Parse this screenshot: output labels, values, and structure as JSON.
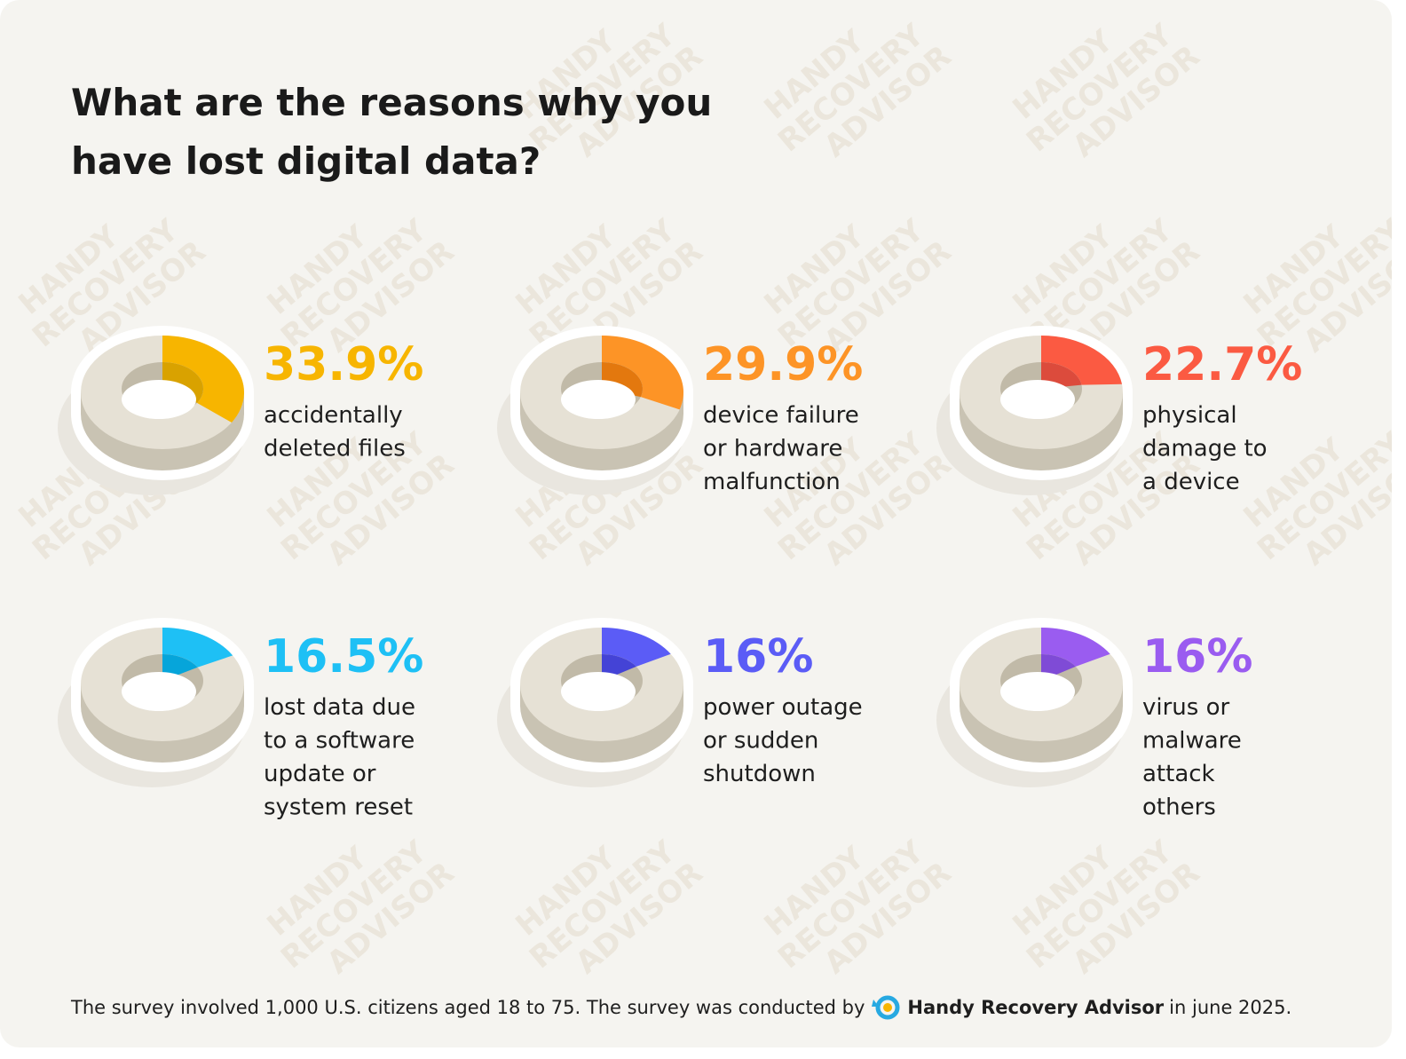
{
  "title": [
    "What are the reasons why you",
    "have lost digital data?"
  ],
  "watermark": [
    "HANDY",
    "RECOVERY",
    "ADVISOR"
  ],
  "footnote": [
    "The survey involved 1,000 U.S. citizens aged 18 to 75. The survey was conducted by",
    "Handy Recovery Advisor",
    "in june 2025."
  ],
  "chart_data": [
    {
      "type": "donut",
      "values": [
        33.9
      ],
      "value_labels": [
        "33.9%"
      ],
      "label": [
        "accidentally",
        "deleted files"
      ],
      "color": "#f7b500",
      "dark": "#d9a200"
    },
    {
      "type": "donut",
      "values": [
        29.9
      ],
      "value_labels": [
        "29.9%"
      ],
      "label": [
        "device failure",
        "or hardware",
        "malfunction"
      ],
      "color": "#fd9426",
      "dark": "#e3780e"
    },
    {
      "type": "donut",
      "values": [
        22.7
      ],
      "value_labels": [
        "22.7%"
      ],
      "label": [
        "physical",
        "damage to",
        "a device"
      ],
      "color": "#fb5a42",
      "dark": "#dc4b3c"
    },
    {
      "type": "donut",
      "values": [
        16.5
      ],
      "value_labels": [
        "16.5%"
      ],
      "label": [
        "lost data due",
        "to a software",
        "update or",
        "system reset"
      ],
      "color": "#1ec0f5",
      "dark": "#06a5da"
    },
    {
      "type": "donut",
      "values": [
        16
      ],
      "value_labels": [
        "16%"
      ],
      "label": [
        "power outage",
        "or sudden",
        "shutdown"
      ],
      "color": "#5b5cf6",
      "dark": "#4443d6"
    },
    {
      "type": "donut",
      "values": [
        16
      ],
      "value_labels": [
        "16%"
      ],
      "label": [
        "virus or",
        "malware",
        "attack",
        "others"
      ],
      "color": "#9a5cf0",
      "dark": "#7f4bd6"
    }
  ]
}
